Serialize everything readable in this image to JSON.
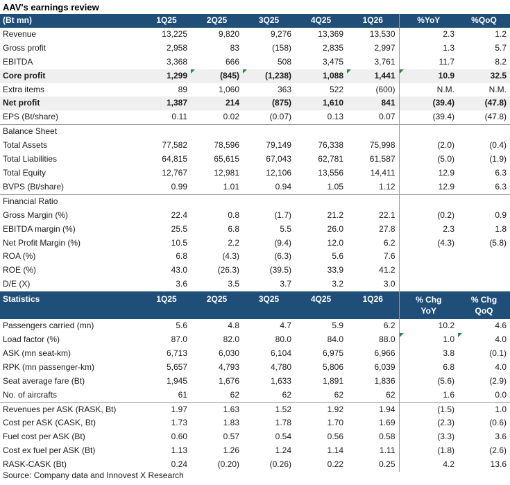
{
  "title": "AAV's earnings review",
  "header": {
    "unit": "(Bt mn)",
    "cols": [
      "1Q25",
      "2Q25",
      "3Q25",
      "4Q25",
      "1Q26",
      "%YoY",
      "%QoQ"
    ]
  },
  "income": [
    {
      "label": "Revenue",
      "v": [
        "13,225",
        "9,820",
        "9,276",
        "13,369",
        "13,530",
        "2.3",
        "1.2"
      ]
    },
    {
      "label": "Gross profit",
      "v": [
        "2,958",
        "83",
        "(158)",
        "2,835",
        "2,997",
        "1.3",
        "5.7"
      ]
    },
    {
      "label": "EBITDA",
      "v": [
        "3,368",
        "666",
        "508",
        "3,475",
        "3,761",
        "11.7",
        "8.2"
      ]
    },
    {
      "label": "Core profit",
      "v": [
        "1,299",
        "(845)",
        "(1,238)",
        "1,088",
        "1,441",
        "10.9",
        "32.5"
      ]
    },
    {
      "label": "Extra items",
      "v": [
        "89",
        "1,060",
        "363",
        "522",
        "(600)",
        "N.M.",
        "N.M."
      ]
    },
    {
      "label": "Net profit",
      "v": [
        "1,387",
        "214",
        "(875)",
        "1,610",
        "841",
        "(39.4)",
        "(47.8)"
      ]
    },
    {
      "label": "EPS (Bt/share)",
      "v": [
        "0.11",
        "0.02",
        "(0.07)",
        "0.13",
        "0.07",
        "(39.4)",
        "(47.8)"
      ]
    }
  ],
  "balance_title": "Balance Sheet",
  "balance": [
    {
      "label": "Total Assets",
      "v": [
        "77,582",
        "78,596",
        "79,149",
        "76,338",
        "75,998",
        "(2.0)",
        "(0.4)"
      ]
    },
    {
      "label": "Total Liabilities",
      "v": [
        "64,815",
        "65,615",
        "67,043",
        "62,781",
        "61,587",
        "(5.0)",
        "(1.9)"
      ]
    },
    {
      "label": "Total Equity",
      "v": [
        "12,767",
        "12,981",
        "12,106",
        "13,556",
        "14,411",
        "12.9",
        "6.3"
      ]
    },
    {
      "label": "BVPS (Bt/share)",
      "v": [
        "0.99",
        "1.01",
        "0.94",
        "1.05",
        "1.12",
        "12.9",
        "6.3"
      ]
    }
  ],
  "ratio_title": "Financial Ratio",
  "ratios": [
    {
      "label": "Gross Margin (%)",
      "v": [
        "22.4",
        "0.8",
        "(1.7)",
        "21.2",
        "22.1",
        "(0.2)",
        "0.9"
      ]
    },
    {
      "label": "EBITDA margin (%)",
      "v": [
        "25.5",
        "6.8",
        "5.5",
        "26.0",
        "27.8",
        "2.3",
        "1.8"
      ]
    },
    {
      "label": "Net Profit Margin (%)",
      "v": [
        "10.5",
        "2.2",
        "(9.4)",
        "12.0",
        "6.2",
        "(4.3)",
        "(5.8)"
      ]
    },
    {
      "label": "ROA (%)",
      "v": [
        "6.8",
        "(4.3)",
        "(6.3)",
        "5.6",
        "7.6",
        "",
        ""
      ]
    },
    {
      "label": "ROE (%)",
      "v": [
        "43.0",
        "(26.3)",
        "(39.5)",
        "33.9",
        "41.2",
        "",
        ""
      ]
    },
    {
      "label": "D/E (X)",
      "v": [
        "3.6",
        "3.5",
        "3.7",
        "3.2",
        "3.0",
        "",
        ""
      ]
    }
  ],
  "stats_header": {
    "label": "Statistics",
    "cols": [
      "1Q25",
      "2Q25",
      "3Q25",
      "4Q25",
      "1Q26"
    ],
    "chg1": "% Chg",
    "chg1b": "YoY",
    "chg2": "% Chg",
    "chg2b": "QoQ"
  },
  "stats1": [
    {
      "label": "Passengers carried (mn)",
      "v": [
        "5.6",
        "4.8",
        "4.7",
        "5.9",
        "6.2",
        "10.2",
        "4.6"
      ]
    },
    {
      "label": "Load factor (%)",
      "v": [
        "87.0",
        "82.0",
        "80.0",
        "84.0",
        "88.0",
        "1.0",
        "4.0"
      ]
    },
    {
      "label": "ASK (mn seat-km)",
      "v": [
        "6,713",
        "6,030",
        "6,104",
        "6,975",
        "6,966",
        "3.8",
        "(0.1)"
      ]
    },
    {
      "label": "RPK (mn passenger-km)",
      "v": [
        "5,657",
        "4,793",
        "4,780",
        "5,806",
        "6,039",
        "6.8",
        "4.0"
      ]
    },
    {
      "label": "Seat average fare (Bt)",
      "v": [
        "1,945",
        "1,676",
        "1,633",
        "1,891",
        "1,836",
        "(5.6)",
        "(2.9)"
      ]
    },
    {
      "label": "No. of aircrafts",
      "v": [
        "61",
        "62",
        "62",
        "62",
        "62",
        "1.6",
        "0.0"
      ]
    }
  ],
  "stats2": [
    {
      "label": "Revenues per ASK (RASK, Bt)",
      "v": [
        "1.97",
        "1.63",
        "1.52",
        "1.92",
        "1.94",
        "(1.5)",
        "1.0"
      ]
    },
    {
      "label": "Cost per ASK (CASK, Bt)",
      "v": [
        "1.73",
        "1.83",
        "1.78",
        "1.70",
        "1.69",
        "(2.3)",
        "(0.6)"
      ]
    },
    {
      "label": "Fuel cost per ASK (Bt)",
      "v": [
        "0.60",
        "0.57",
        "0.54",
        "0.56",
        "0.58",
        "(3.3)",
        "3.6"
      ]
    },
    {
      "label": "Cost ex fuel per ASK (Bt)",
      "v": [
        "1.13",
        "1.26",
        "1.24",
        "1.14",
        "1.11",
        "(1.8)",
        "(2.6)"
      ]
    },
    {
      "label": "RASK-CASK (Bt)",
      "v": [
        "0.24",
        "(0.20)",
        "(0.26)",
        "0.22",
        "0.25",
        "4.2",
        "13.6"
      ]
    }
  ],
  "source": "Source: Company data and Innovest X Research",
  "colors": {
    "header_bg": "#1f4e79",
    "header_text": "#ffffff",
    "shade": "#efefef",
    "flag": "#1e8c3a"
  }
}
